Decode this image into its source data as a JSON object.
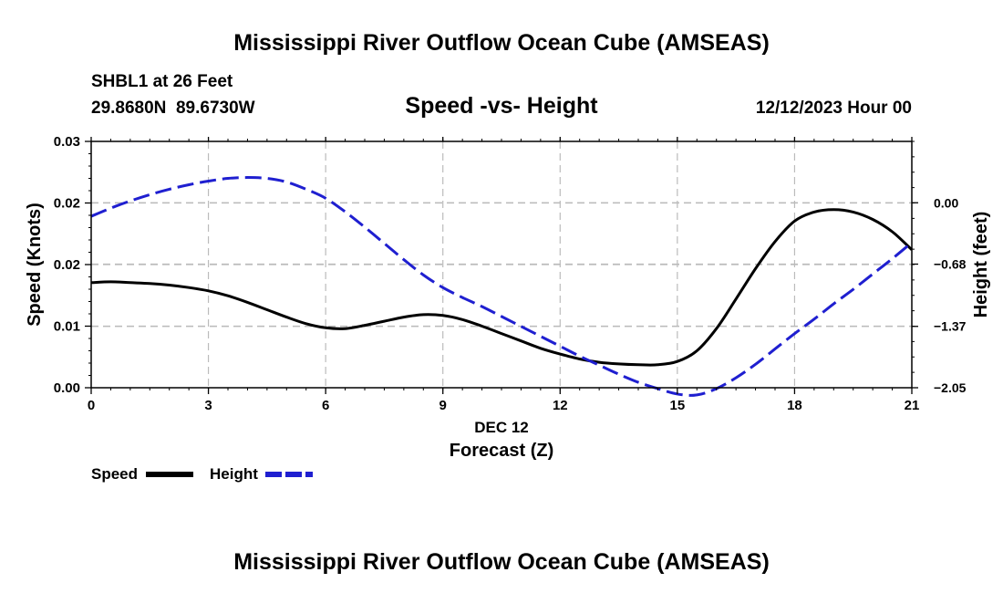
{
  "header": {
    "title": "Mississippi River Outflow Ocean Cube (AMSEAS)",
    "station": "SHBL1 at 26 Feet",
    "coords": "29.8680N  89.6730W",
    "subtitle": "Speed -vs- Height",
    "datetime": "12/12/2023 Hour 00"
  },
  "footer": {
    "title": "Mississippi River Outflow Ocean Cube (AMSEAS)"
  },
  "chart_data": {
    "type": "line",
    "title": "Speed -vs- Height",
    "xlabel_date": "DEC 12",
    "xlabel": "Forecast (Z)",
    "ylabel_left": "Speed (Knots)",
    "ylabel_right": "Height (feet)",
    "xlim": [
      0,
      21
    ],
    "ylim_left": [
      0,
      0.03
    ],
    "ylim_right": [
      -2.05,
      0.68
    ],
    "x_ticks": [
      0,
      3,
      6,
      9,
      12,
      15,
      18,
      21
    ],
    "x_tick_labels": [
      "0",
      "3",
      "6",
      "9",
      "12",
      "15",
      "18",
      "21"
    ],
    "y_left_ticks": [
      0,
      0.0075,
      0.015,
      0.0225,
      0.03
    ],
    "y_left_tick_labels": [
      "0.00",
      "0.01",
      "0.02",
      "0.02",
      "0.03"
    ],
    "y_right_ticks": [
      -2.05,
      -1.37,
      -0.68,
      0.0
    ],
    "y_right_tick_labels": [
      "−2.05",
      "−1.37",
      "−0.68",
      "0.00"
    ],
    "grid": true,
    "legend": [
      {
        "name": "Speed",
        "color": "#000000",
        "dash": false
      },
      {
        "name": "Height",
        "color": "#1f1fd0",
        "dash": true
      }
    ],
    "series": [
      {
        "name": "Speed",
        "axis": "left",
        "color": "#000000",
        "x": [
          0,
          0.5,
          1,
          1.5,
          2,
          2.5,
          3,
          3.5,
          4,
          4.5,
          5,
          5.5,
          6,
          6.5,
          7,
          7.5,
          8,
          8.5,
          9,
          9.5,
          10,
          10.5,
          11,
          11.5,
          12,
          12.5,
          13,
          13.5,
          14,
          14.5,
          15,
          15.5,
          16,
          16.5,
          17,
          17.5,
          18,
          18.5,
          19,
          19.5,
          20,
          20.5,
          21
        ],
        "values": [
          0.0128,
          0.0129,
          0.0128,
          0.0127,
          0.0125,
          0.0122,
          0.0118,
          0.0112,
          0.0104,
          0.0095,
          0.0086,
          0.0078,
          0.0073,
          0.0072,
          0.0076,
          0.0081,
          0.0086,
          0.0089,
          0.0088,
          0.0083,
          0.0075,
          0.0066,
          0.0057,
          0.0048,
          0.0041,
          0.0035,
          0.0031,
          0.0029,
          0.0028,
          0.0028,
          0.0032,
          0.0045,
          0.0072,
          0.0108,
          0.0145,
          0.0178,
          0.0203,
          0.0214,
          0.0217,
          0.0214,
          0.0205,
          0.019,
          0.0168
        ]
      },
      {
        "name": "Height",
        "axis": "right",
        "color": "#1f1fd0",
        "x": [
          0,
          0.5,
          1,
          1.5,
          2,
          2.5,
          3,
          3.5,
          4,
          4.5,
          5,
          5.5,
          6,
          6.5,
          7,
          7.5,
          8,
          8.5,
          9,
          9.5,
          10,
          10.5,
          11,
          11.5,
          12,
          12.5,
          13,
          13.5,
          14,
          14.5,
          15,
          15.5,
          16,
          16.5,
          17,
          17.5,
          18,
          18.5,
          19,
          19.5,
          20,
          20.5,
          21
        ],
        "values": [
          -0.15,
          -0.06,
          0.02,
          0.09,
          0.15,
          0.2,
          0.24,
          0.27,
          0.28,
          0.27,
          0.23,
          0.15,
          0.05,
          -0.1,
          -0.27,
          -0.45,
          -0.63,
          -0.8,
          -0.94,
          -1.05,
          -1.15,
          -1.26,
          -1.37,
          -1.48,
          -1.59,
          -1.7,
          -1.8,
          -1.9,
          -1.99,
          -2.06,
          -2.12,
          -2.13,
          -2.06,
          -1.94,
          -1.79,
          -1.62,
          -1.45,
          -1.29,
          -1.12,
          -0.96,
          -0.79,
          -0.62,
          -0.44
        ]
      }
    ]
  }
}
